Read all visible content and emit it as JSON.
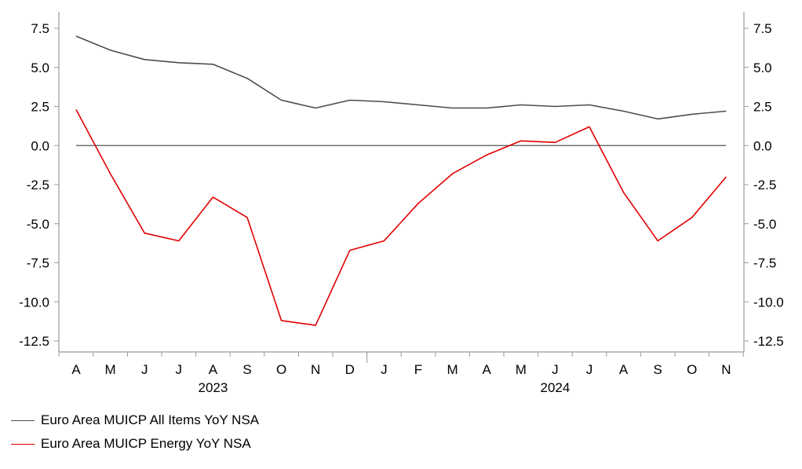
{
  "chart_data": {
    "type": "line",
    "x": [
      "A",
      "M",
      "J",
      "J",
      "A",
      "S",
      "O",
      "N",
      "D",
      "J",
      "F",
      "M",
      "A",
      "M",
      "J",
      "J",
      "A",
      "S",
      "O",
      "N"
    ],
    "year_labels": [
      {
        "label": "2023",
        "start": 0,
        "end": 8
      },
      {
        "label": "2024",
        "start": 9,
        "end": 19
      }
    ],
    "series": [
      {
        "name": "Euro Area MUICP All Items YoY NSA",
        "color": "#4d4d4d",
        "values": [
          7.0,
          6.1,
          5.5,
          5.3,
          5.2,
          4.3,
          2.9,
          2.4,
          2.9,
          2.8,
          2.6,
          2.4,
          2.4,
          2.6,
          2.5,
          2.6,
          2.2,
          1.7,
          2.0,
          2.2
        ]
      },
      {
        "name": "Euro Area MUICP Energy YoY NSA",
        "color": "#e00000",
        "values": [
          2.3,
          -1.8,
          -5.6,
          -6.1,
          -3.3,
          -4.6,
          -11.2,
          -11.5,
          -6.7,
          -6.1,
          -3.7,
          -1.8,
          -0.6,
          0.3,
          0.2,
          1.2,
          -3.0,
          -6.1,
          -4.6,
          -2.0
        ]
      }
    ],
    "y_ticks": [
      "7.5",
      "5.0",
      "2.5",
      "0.0",
      "-2.5",
      "-5.0",
      "-7.5",
      "-10.0",
      "-12.5"
    ],
    "y_tick_values": [
      7.5,
      5.0,
      2.5,
      0.0,
      -2.5,
      -5.0,
      -7.5,
      -10.0,
      -12.5
    ],
    "ylim": [
      -12.5,
      8.0
    ],
    "dual_y_axis": true,
    "zero_line": true,
    "grid": false,
    "legend_position": "bottom-left"
  }
}
